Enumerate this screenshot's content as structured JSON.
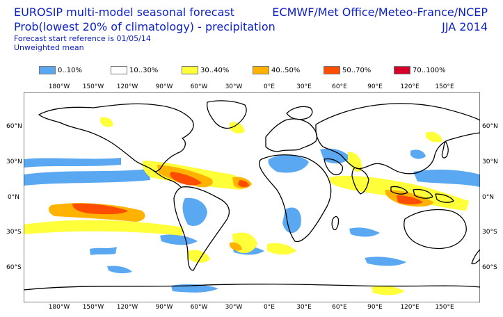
{
  "header": {
    "title_line1": "EUROSIP multi-model seasonal forecast",
    "title_line2": "Prob(lowest 20% of climatology) - precipitation",
    "forecast_reference": "Forecast start reference is 01/05/14",
    "mean_type": "Unweighted mean",
    "centres": "ECMWF/Met Office/Meteo-France/NCEP",
    "season": "JJA 2014"
  },
  "legend": [
    {
      "label": "0..10%",
      "color": "#5aa7f2"
    },
    {
      "label": "10..30%",
      "color": "#ffffff"
    },
    {
      "label": "30..40%",
      "color": "#ffff3a"
    },
    {
      "label": "40..50%",
      "color": "#ffb300"
    },
    {
      "label": "50..70%",
      "color": "#ff4d00"
    },
    {
      "label": "70..100%",
      "color": "#d4002a"
    }
  ],
  "axes": {
    "lon_top": [
      "180°W",
      "150°W",
      "120°W",
      "90°W",
      "60°W",
      "30°W",
      "0°E",
      "30°E",
      "60°E",
      "90°E",
      "120°E",
      "150°E"
    ],
    "lon_bottom": [
      "180°W",
      "150°W",
      "120°W",
      "90°W",
      "60°W",
      "30°W",
      "0°E",
      "30°E",
      "60°E",
      "90°E",
      "120°E",
      "150°E"
    ],
    "lat_left": [
      "60°N",
      "30°N",
      "0°N",
      "30°S",
      "60°S"
    ],
    "lat_right": [
      "60°N",
      "30°N",
      "0°N",
      "30°S",
      "60°S"
    ]
  }
}
